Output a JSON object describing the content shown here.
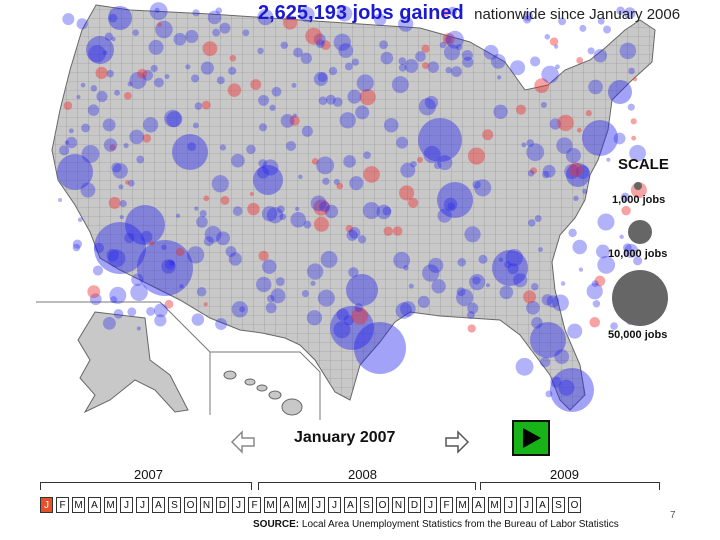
{
  "headline": {
    "count": "2,625,193 jobs gained",
    "rest": "nationwide since January 2006"
  },
  "scale": {
    "title": "SCALE",
    "items": [
      {
        "label": "1,000 jobs",
        "jobs": 1000
      },
      {
        "label": "10,000 jobs",
        "jobs": 10000
      },
      {
        "label": "50,000 jobs",
        "jobs": 50000
      }
    ]
  },
  "player": {
    "current": "January 2007",
    "prev_icon": "left-arrow-icon",
    "next_icon": "right-arrow-icon",
    "play_icon": "play-icon"
  },
  "timeline": {
    "years": [
      "2007",
      "2008",
      "2009"
    ],
    "months": [
      "J",
      "F",
      "M",
      "A",
      "M",
      "J",
      "J",
      "A",
      "S",
      "O",
      "N",
      "D",
      "J",
      "F",
      "M",
      "A",
      "M",
      "J",
      "J",
      "A",
      "S",
      "O",
      "N",
      "D",
      "J",
      "F",
      "M",
      "A",
      "M",
      "J",
      "J",
      "A",
      "S",
      "O"
    ],
    "active_index": 0
  },
  "source": {
    "label": "SOURCE:",
    "text": "Local Area Unemployment Statistics from the Bureau of Labor Statistics"
  },
  "page_number": "7",
  "colors": {
    "gain": "#2222ee",
    "loss": "#ee3333",
    "land": "#c8c8c8",
    "play": "#18b318",
    "active_month": "#e8502a"
  }
}
